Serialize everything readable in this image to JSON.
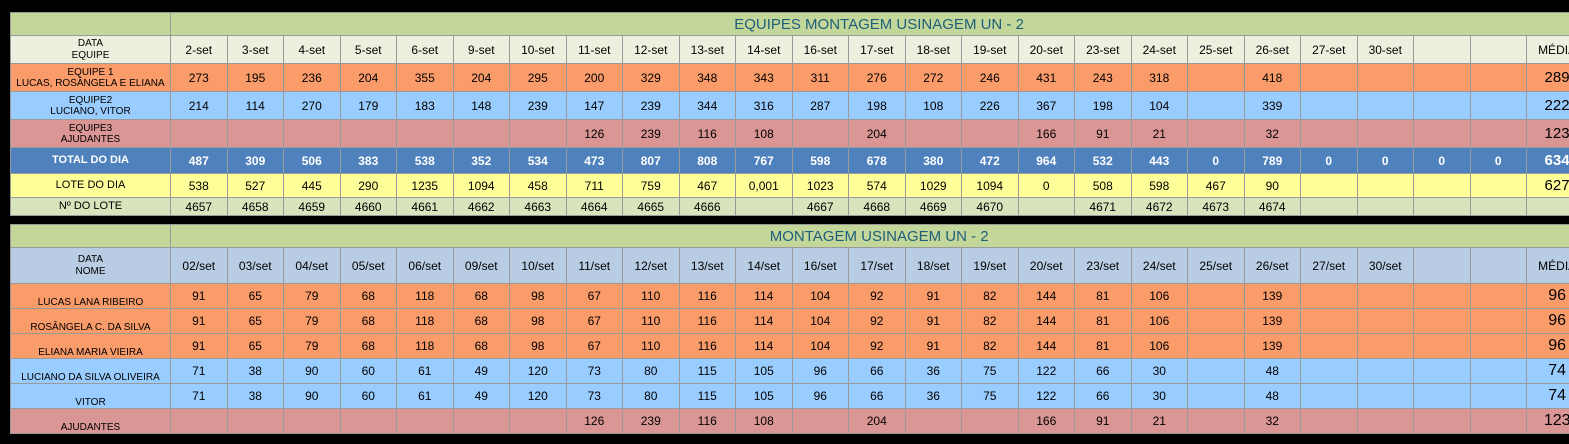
{
  "table1": {
    "title": "EQUIPES MONTAGEM USINAGEM UN - 2",
    "header_top": "DATA",
    "header_bottom": "EQUIPE",
    "dates": [
      "2-set",
      "3-set",
      "4-set",
      "5-set",
      "6-set",
      "9-set",
      "10-set",
      "11-set",
      "12-set",
      "13-set",
      "14-set",
      "16-set",
      "17-set",
      "18-set",
      "19-set",
      "20-set",
      "23-set",
      "24-set",
      "25-set",
      "26-set",
      "27-set",
      "30-set",
      "",
      ""
    ],
    "avg_header": "MÉDIA",
    "rows": [
      {
        "label1": "EQUIPE 1",
        "label2": "LUCAS, ROSÂNGELA E ELIANA",
        "color": "orange",
        "values": [
          "273",
          "195",
          "236",
          "204",
          "355",
          "204",
          "295",
          "200",
          "329",
          "348",
          "343",
          "311",
          "276",
          "272",
          "246",
          "431",
          "243",
          "318",
          "",
          "418",
          "",
          "",
          "",
          ""
        ],
        "avg": "289"
      },
      {
        "label1": "EQUIPE2",
        "label2": "LUCIANO, VITOR",
        "color": "blue",
        "values": [
          "214",
          "114",
          "270",
          "179",
          "183",
          "148",
          "239",
          "147",
          "239",
          "344",
          "316",
          "287",
          "198",
          "108",
          "226",
          "367",
          "198",
          "104",
          "",
          "339",
          "",
          "",
          "",
          ""
        ],
        "avg": "222"
      },
      {
        "label1": "EQUIPE3",
        "label2": "AJUDANTES",
        "color": "pink",
        "values": [
          "",
          "",
          "",
          "",
          "",
          "",
          "",
          "126",
          "239",
          "116",
          "108",
          "",
          "204",
          "",
          "",
          "166",
          "91",
          "21",
          "",
          "32",
          "",
          "",
          "",
          ""
        ],
        "avg": "123"
      }
    ],
    "total": {
      "label": "TOTAL DO DIA",
      "values": [
        "487",
        "309",
        "506",
        "383",
        "538",
        "352",
        "534",
        "473",
        "807",
        "808",
        "767",
        "598",
        "678",
        "380",
        "472",
        "964",
        "532",
        "443",
        "0",
        "789",
        "0",
        "0",
        "0",
        "0"
      ],
      "avg": "634"
    },
    "lote": {
      "label": "LOTE DO DIA",
      "values": [
        "538",
        "527",
        "445",
        "290",
        "1235",
        "1094",
        "458",
        "711",
        "759",
        "467",
        "0,001",
        "1023",
        "574",
        "1029",
        "1094",
        "0",
        "508",
        "598",
        "467",
        "90",
        "",
        "",
        "",
        ""
      ],
      "avg": "627"
    },
    "numlote": {
      "label": "Nº DO LOTE",
      "values": [
        "4657",
        "4658",
        "4659",
        "4660",
        "4661",
        "4662",
        "4663",
        "4664",
        "4665",
        "4666",
        "",
        "4667",
        "4668",
        "4669",
        "4670",
        "",
        "4671",
        "4672",
        "4673",
        "4674",
        "",
        "",
        "",
        ""
      ],
      "avg": ""
    }
  },
  "table2": {
    "title": "MONTAGEM USINAGEM UN - 2",
    "header_top": "DATA",
    "header_bottom": "NOME",
    "dates": [
      "02/set",
      "03/set",
      "04/set",
      "05/set",
      "06/set",
      "09/set",
      "10/set",
      "11/set",
      "12/set",
      "13/set",
      "14/set",
      "16/set",
      "17/set",
      "18/set",
      "19/set",
      "20/set",
      "23/set",
      "24/set",
      "25/set",
      "26/set",
      "27/set",
      "30/set",
      "",
      ""
    ],
    "avg_header": "MÉDIA",
    "rows": [
      {
        "label": "LUCAS LANA RIBEIRO",
        "color": "orange",
        "values": [
          "91",
          "65",
          "79",
          "68",
          "118",
          "68",
          "98",
          "67",
          "110",
          "116",
          "114",
          "104",
          "92",
          "91",
          "82",
          "144",
          "81",
          "106",
          "",
          "139",
          "",
          "",
          "",
          ""
        ],
        "avg": "96"
      },
      {
        "label": "ROSÂNGELA C. DA SILVA",
        "color": "orange",
        "values": [
          "91",
          "65",
          "79",
          "68",
          "118",
          "68",
          "98",
          "67",
          "110",
          "116",
          "114",
          "104",
          "92",
          "91",
          "82",
          "144",
          "81",
          "106",
          "",
          "139",
          "",
          "",
          "",
          ""
        ],
        "avg": "96"
      },
      {
        "label": "ELIANA MARIA VIEIRA",
        "color": "orange",
        "values": [
          "91",
          "65",
          "79",
          "68",
          "118",
          "68",
          "98",
          "67",
          "110",
          "116",
          "114",
          "104",
          "92",
          "91",
          "82",
          "144",
          "81",
          "106",
          "",
          "139",
          "",
          "",
          "",
          ""
        ],
        "avg": "96"
      },
      {
        "label": "LUCIANO DA SILVA OLIVEIRA",
        "color": "blue",
        "values": [
          "71",
          "38",
          "90",
          "60",
          "61",
          "49",
          "120",
          "73",
          "80",
          "115",
          "105",
          "96",
          "66",
          "36",
          "75",
          "122",
          "66",
          "30",
          "",
          "48",
          "",
          "",
          "",
          ""
        ],
        "avg": "74"
      },
      {
        "label": "VITOR",
        "color": "blue",
        "values": [
          "71",
          "38",
          "90",
          "60",
          "61",
          "49",
          "120",
          "73",
          "80",
          "115",
          "105",
          "96",
          "66",
          "36",
          "75",
          "122",
          "66",
          "30",
          "",
          "48",
          "",
          "",
          "",
          ""
        ],
        "avg": "74"
      },
      {
        "label": "AJUDANTES",
        "color": "pink",
        "values": [
          "",
          "",
          "",
          "",
          "",
          "",
          "",
          "126",
          "239",
          "116",
          "108",
          "",
          "204",
          "",
          "",
          "166",
          "91",
          "21",
          "",
          "32",
          "",
          "",
          "",
          ""
        ],
        "avg": "123"
      }
    ]
  }
}
